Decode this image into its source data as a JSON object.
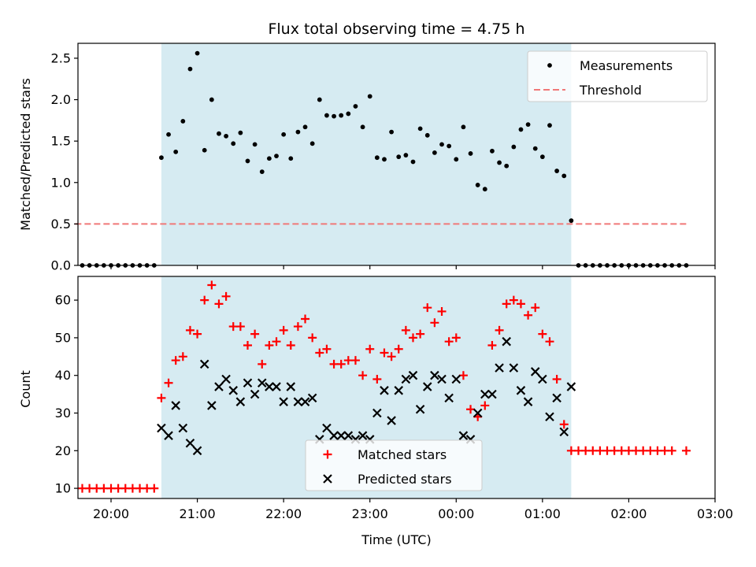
{
  "chart_data": [
    {
      "type": "scatter",
      "title": "Flux total observing time = 4.75 h",
      "xlabel": "",
      "ylabel": "Matched/Predicted stars",
      "ylim": [
        0,
        2.68
      ],
      "xlim": [
        "19:37",
        "03:00"
      ],
      "yticks": [
        "0.0",
        "0.5",
        "1.0",
        "1.5",
        "2.0",
        "2.5"
      ],
      "shaded_interval": [
        "20:35",
        "01:20"
      ],
      "legend": {
        "placement": "upper-right",
        "entries": [
          "Measurements",
          "Threshold"
        ]
      },
      "series": [
        {
          "name": "Measurements",
          "marker": "dot",
          "color": "#000000",
          "points": [
            [
              "19:40",
              0
            ],
            [
              "19:45",
              0
            ],
            [
              "19:50",
              0
            ],
            [
              "19:55",
              0
            ],
            [
              "20:00",
              0
            ],
            [
              "20:05",
              0
            ],
            [
              "20:10",
              0
            ],
            [
              "20:15",
              0
            ],
            [
              "20:20",
              0
            ],
            [
              "20:25",
              0
            ],
            [
              "20:30",
              0
            ],
            [
              "20:35",
              1.3
            ],
            [
              "20:40",
              1.58
            ],
            [
              "20:45",
              1.37
            ],
            [
              "20:50",
              1.74
            ],
            [
              "20:55",
              2.37
            ],
            [
              "21:00",
              2.56
            ],
            [
              "21:05",
              1.39
            ],
            [
              "21:10",
              2.0
            ],
            [
              "21:15",
              1.59
            ],
            [
              "21:20",
              1.56
            ],
            [
              "21:25",
              1.47
            ],
            [
              "21:30",
              1.6
            ],
            [
              "21:35",
              1.26
            ],
            [
              "21:40",
              1.46
            ],
            [
              "21:45",
              1.13
            ],
            [
              "21:50",
              1.29
            ],
            [
              "21:55",
              1.32
            ],
            [
              "22:00",
              1.58
            ],
            [
              "22:05",
              1.29
            ],
            [
              "22:10",
              1.61
            ],
            [
              "22:15",
              1.67
            ],
            [
              "22:20",
              1.47
            ],
            [
              "22:25",
              2.0
            ],
            [
              "22:30",
              1.81
            ],
            [
              "22:35",
              1.8
            ],
            [
              "22:40",
              1.81
            ],
            [
              "22:45",
              1.83
            ],
            [
              "22:50",
              1.92
            ],
            [
              "22:55",
              1.67
            ],
            [
              "23:00",
              2.04
            ],
            [
              "23:05",
              1.3
            ],
            [
              "23:10",
              1.28
            ],
            [
              "23:15",
              1.61
            ],
            [
              "23:20",
              1.31
            ],
            [
              "23:25",
              1.33
            ],
            [
              "23:30",
              1.25
            ],
            [
              "23:35",
              1.65
            ],
            [
              "23:40",
              1.57
            ],
            [
              "23:45",
              1.36
            ],
            [
              "23:50",
              1.46
            ],
            [
              "23:55",
              1.44
            ],
            [
              "00:00",
              1.28
            ],
            [
              "00:05",
              1.67
            ],
            [
              "00:10",
              1.35
            ],
            [
              "00:15",
              0.97
            ],
            [
              "00:20",
              0.92
            ],
            [
              "00:25",
              1.38
            ],
            [
              "00:30",
              1.24
            ],
            [
              "00:35",
              1.2
            ],
            [
              "00:40",
              1.43
            ],
            [
              "00:45",
              1.64
            ],
            [
              "00:50",
              1.7
            ],
            [
              "00:55",
              1.41
            ],
            [
              "01:00",
              1.31
            ],
            [
              "01:05",
              1.69
            ],
            [
              "01:10",
              1.14
            ],
            [
              "01:15",
              1.08
            ],
            [
              "01:20",
              0.54
            ],
            [
              "01:25",
              0
            ],
            [
              "01:30",
              0
            ],
            [
              "01:35",
              0
            ],
            [
              "01:40",
              0
            ],
            [
              "01:45",
              0
            ],
            [
              "01:50",
              0
            ],
            [
              "01:55",
              0
            ],
            [
              "02:00",
              0
            ],
            [
              "02:05",
              0
            ],
            [
              "02:10",
              0
            ],
            [
              "02:15",
              0
            ],
            [
              "02:20",
              0
            ],
            [
              "02:25",
              0
            ],
            [
              "02:30",
              0
            ],
            [
              "02:35",
              0
            ],
            [
              "02:40",
              0
            ]
          ]
        },
        {
          "name": "Threshold",
          "marker": "dashed-line",
          "color": "#f07878",
          "points": [
            [
              "19:35",
              0.5
            ],
            [
              "02:40",
              0.5
            ]
          ]
        }
      ]
    },
    {
      "type": "scatter",
      "title": "",
      "xlabel": "Time (UTC)",
      "ylabel": "Count",
      "ylim": [
        7.3,
        66.3
      ],
      "xlim": [
        "19:37",
        "03:00"
      ],
      "xticks": [
        "20:00",
        "21:00",
        "22:00",
        "23:00",
        "00:00",
        "01:00",
        "02:00",
        "03:00"
      ],
      "yticks": [
        "10",
        "20",
        "30",
        "40",
        "50",
        "60"
      ],
      "shaded_interval": [
        "20:35",
        "01:20"
      ],
      "legend": {
        "placement": "lower-center",
        "entries": [
          "Matched stars",
          "Predicted stars"
        ]
      },
      "series": [
        {
          "name": "Matched stars",
          "marker": "plus",
          "color": "#ff0000",
          "points": [
            [
              "19:40",
              10
            ],
            [
              "19:45",
              10
            ],
            [
              "19:50",
              10
            ],
            [
              "19:55",
              10
            ],
            [
              "20:00",
              10
            ],
            [
              "20:05",
              10
            ],
            [
              "20:10",
              10
            ],
            [
              "20:15",
              10
            ],
            [
              "20:20",
              10
            ],
            [
              "20:25",
              10
            ],
            [
              "20:30",
              10
            ],
            [
              "20:35",
              34
            ],
            [
              "20:40",
              38
            ],
            [
              "20:45",
              44
            ],
            [
              "20:50",
              45
            ],
            [
              "20:55",
              52
            ],
            [
              "21:00",
              51
            ],
            [
              "21:05",
              60
            ],
            [
              "21:10",
              64
            ],
            [
              "21:15",
              59
            ],
            [
              "21:20",
              61
            ],
            [
              "21:25",
              53
            ],
            [
              "21:30",
              53
            ],
            [
              "21:35",
              48
            ],
            [
              "21:40",
              51
            ],
            [
              "21:45",
              43
            ],
            [
              "21:50",
              48
            ],
            [
              "21:55",
              49
            ],
            [
              "22:00",
              52
            ],
            [
              "22:05",
              48
            ],
            [
              "22:10",
              53
            ],
            [
              "22:15",
              55
            ],
            [
              "22:20",
              50
            ],
            [
              "22:25",
              46
            ],
            [
              "22:30",
              47
            ],
            [
              "22:35",
              43
            ],
            [
              "22:40",
              43
            ],
            [
              "22:45",
              44
            ],
            [
              "22:50",
              44
            ],
            [
              "22:55",
              40
            ],
            [
              "23:00",
              47
            ],
            [
              "23:05",
              39
            ],
            [
              "23:10",
              46
            ],
            [
              "23:15",
              45
            ],
            [
              "23:20",
              47
            ],
            [
              "23:25",
              52
            ],
            [
              "23:30",
              50
            ],
            [
              "23:35",
              51
            ],
            [
              "23:40",
              58
            ],
            [
              "23:45",
              54
            ],
            [
              "23:50",
              57
            ],
            [
              "23:55",
              49
            ],
            [
              "00:00",
              50
            ],
            [
              "00:05",
              40
            ],
            [
              "00:10",
              31
            ],
            [
              "00:15",
              29
            ],
            [
              "00:20",
              32
            ],
            [
              "00:25",
              48
            ],
            [
              "00:30",
              52
            ],
            [
              "00:35",
              59
            ],
            [
              "00:40",
              60
            ],
            [
              "00:45",
              59
            ],
            [
              "00:50",
              56
            ],
            [
              "00:55",
              58
            ],
            [
              "01:00",
              51
            ],
            [
              "01:05",
              49
            ],
            [
              "01:10",
              39
            ],
            [
              "01:15",
              27
            ],
            [
              "01:20",
              20
            ],
            [
              "01:25",
              20
            ],
            [
              "01:30",
              20
            ],
            [
              "01:35",
              20
            ],
            [
              "01:40",
              20
            ],
            [
              "01:45",
              20
            ],
            [
              "01:50",
              20
            ],
            [
              "01:55",
              20
            ],
            [
              "02:00",
              20
            ],
            [
              "02:05",
              20
            ],
            [
              "02:10",
              20
            ],
            [
              "02:15",
              20
            ],
            [
              "02:20",
              20
            ],
            [
              "02:25",
              20
            ],
            [
              "02:30",
              20
            ],
            [
              "02:40",
              20
            ]
          ]
        },
        {
          "name": "Predicted stars",
          "marker": "x",
          "color": "#000000",
          "points": [
            [
              "20:35",
              26
            ],
            [
              "20:40",
              24
            ],
            [
              "20:45",
              32
            ],
            [
              "20:50",
              26
            ],
            [
              "20:55",
              22
            ],
            [
              "21:00",
              20
            ],
            [
              "21:05",
              43
            ],
            [
              "21:10",
              32
            ],
            [
              "21:15",
              37
            ],
            [
              "21:20",
              39
            ],
            [
              "21:25",
              36
            ],
            [
              "21:30",
              33
            ],
            [
              "21:35",
              38
            ],
            [
              "21:40",
              35
            ],
            [
              "21:45",
              38
            ],
            [
              "21:50",
              37
            ],
            [
              "21:55",
              37
            ],
            [
              "22:00",
              33
            ],
            [
              "22:05",
              37
            ],
            [
              "22:10",
              33
            ],
            [
              "22:15",
              33
            ],
            [
              "22:20",
              34
            ],
            [
              "22:25",
              23
            ],
            [
              "22:30",
              26
            ],
            [
              "22:35",
              24
            ],
            [
              "22:40",
              24
            ],
            [
              "22:45",
              24
            ],
            [
              "22:50",
              23
            ],
            [
              "22:55",
              24
            ],
            [
              "23:00",
              23
            ],
            [
              "23:05",
              30
            ],
            [
              "23:10",
              36
            ],
            [
              "23:15",
              28
            ],
            [
              "23:20",
              36
            ],
            [
              "23:25",
              39
            ],
            [
              "23:30",
              40
            ],
            [
              "23:35",
              31
            ],
            [
              "23:40",
              37
            ],
            [
              "23:45",
              40
            ],
            [
              "23:50",
              39
            ],
            [
              "23:55",
              34
            ],
            [
              "00:00",
              39
            ],
            [
              "00:05",
              24
            ],
            [
              "00:10",
              23
            ],
            [
              "00:15",
              30
            ],
            [
              "00:20",
              35
            ],
            [
              "00:25",
              35
            ],
            [
              "00:30",
              42
            ],
            [
              "00:35",
              49
            ],
            [
              "00:40",
              42
            ],
            [
              "00:45",
              36
            ],
            [
              "00:50",
              33
            ],
            [
              "00:55",
              41
            ],
            [
              "01:00",
              39
            ],
            [
              "01:05",
              29
            ],
            [
              "01:10",
              34
            ],
            [
              "01:15",
              25
            ],
            [
              "01:20",
              37
            ]
          ]
        }
      ]
    }
  ]
}
